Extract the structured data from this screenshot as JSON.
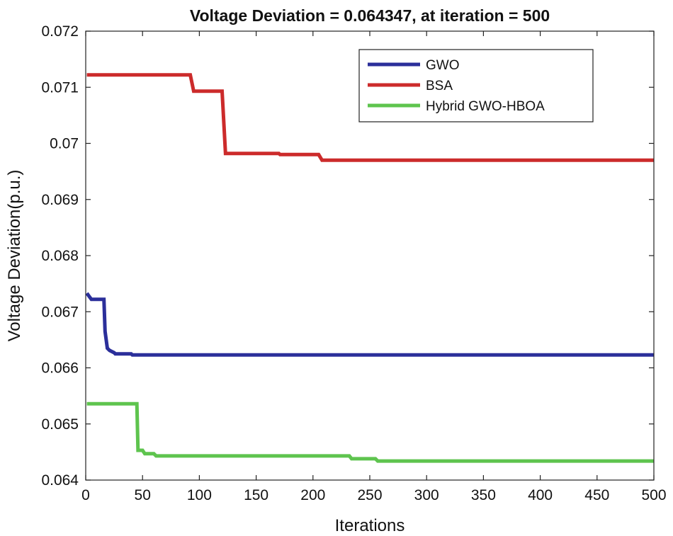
{
  "chart_data": {
    "type": "line",
    "title": "Voltage Deviation = 0.064347, at iteration = 500",
    "xlabel": "Iterations",
    "ylabel": "Voltage Deviation(p.u.)",
    "xlim": [
      0,
      500
    ],
    "ylim": [
      0.064,
      0.072
    ],
    "xticks": [
      0,
      50,
      100,
      150,
      200,
      250,
      300,
      350,
      400,
      450,
      500
    ],
    "xtick_labels": [
      "0",
      "50",
      "100",
      "150",
      "200",
      "250",
      "300",
      "350",
      "400",
      "450",
      "500"
    ],
    "yticks": [
      0.064,
      0.065,
      0.066,
      0.067,
      0.068,
      0.069,
      0.07,
      0.071,
      0.072
    ],
    "ytick_labels": [
      "0.064",
      "0.065",
      "0.066",
      "0.067",
      "0.068",
      "0.069",
      "0.07",
      "0.071",
      "0.072"
    ],
    "legend_position": "top-right",
    "series": [
      {
        "name": "GWO",
        "color": "#2b2f9a",
        "x": [
          1,
          5,
          6,
          16,
          17,
          19,
          21,
          25,
          26,
          40,
          41,
          500
        ],
        "y": [
          0.06733,
          0.06722,
          0.06722,
          0.06722,
          0.06665,
          0.06635,
          0.06631,
          0.06627,
          0.06625,
          0.06625,
          0.06623,
          0.06623
        ]
      },
      {
        "name": "BSA",
        "color": "#cc2b2b",
        "x": [
          1,
          92,
          95,
          120,
          123,
          170,
          171,
          205,
          208,
          500
        ],
        "y": [
          0.07122,
          0.07122,
          0.07093,
          0.07093,
          0.06982,
          0.06982,
          0.0698,
          0.0698,
          0.0697,
          0.0697
        ]
      },
      {
        "name": "Hybrid GWO-HBOA",
        "color": "#5ec44e",
        "x": [
          1,
          45,
          46,
          50,
          52,
          60,
          62,
          232,
          234,
          255,
          257,
          500
        ],
        "y": [
          0.06536,
          0.06536,
          0.06453,
          0.06453,
          0.06447,
          0.06447,
          0.06443,
          0.06443,
          0.06438,
          0.06438,
          0.06434,
          0.06434
        ]
      }
    ]
  }
}
